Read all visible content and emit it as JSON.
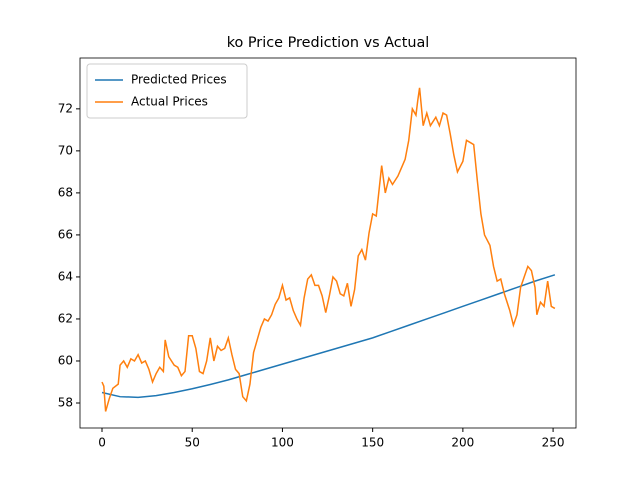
{
  "chart_data": {
    "type": "line",
    "title": "ko Price Prediction vs Actual",
    "legend": "upper left",
    "grid": false,
    "xlim": [
      -12.2,
      262.7
    ],
    "xticks": [
      0,
      50,
      100,
      150,
      200,
      250
    ],
    "ylim": [
      56.81,
      74.42
    ],
    "yticks": [
      58,
      60,
      62,
      64,
      66,
      68,
      70,
      72
    ],
    "series": [
      {
        "name": "Predicted Prices",
        "color": "#1f77b4",
        "x": [
          0,
          10,
          20,
          30,
          40,
          50,
          60,
          70,
          80,
          90,
          100,
          110,
          120,
          130,
          140,
          150,
          160,
          170,
          180,
          190,
          200,
          210,
          220,
          230,
          240,
          251
        ],
        "values": [
          58.5,
          58.3,
          58.27,
          58.35,
          58.5,
          58.68,
          58.88,
          59.1,
          59.35,
          59.6,
          59.85,
          60.1,
          60.35,
          60.6,
          60.85,
          61.1,
          61.4,
          61.7,
          62.0,
          62.3,
          62.6,
          62.9,
          63.2,
          63.5,
          63.8,
          64.1
        ]
      },
      {
        "name": "Actual Prices",
        "color": "#ff7f0e",
        "x": [
          0,
          1,
          2,
          4,
          6,
          9,
          10,
          12,
          14,
          16,
          18,
          20,
          22,
          24,
          26,
          28,
          30,
          32,
          34,
          35,
          37,
          40,
          42,
          44,
          46,
          48,
          50,
          52,
          54,
          56,
          58,
          60,
          62,
          64,
          66,
          68,
          70,
          72,
          74,
          76,
          78,
          80,
          82,
          84,
          86,
          88,
          90,
          92,
          94,
          96,
          98,
          100,
          102,
          104,
          106,
          108,
          110,
          112,
          114,
          116,
          118,
          120,
          122,
          124,
          126,
          128,
          130,
          132,
          134,
          136,
          138,
          140,
          142,
          144,
          146,
          148,
          150,
          152,
          155,
          157,
          159,
          161,
          164,
          166,
          168,
          170,
          172,
          174,
          175,
          176,
          178,
          180,
          182,
          185,
          187,
          189,
          191,
          193,
          195,
          197,
          200,
          202,
          204,
          206,
          208,
          210,
          212,
          215,
          217,
          219,
          221,
          223,
          226,
          228,
          230,
          232,
          234,
          236,
          238,
          240,
          241,
          243,
          245,
          247,
          249,
          251
        ],
        "values": [
          59.0,
          58.8,
          57.6,
          58.2,
          58.7,
          58.9,
          59.8,
          60.0,
          59.7,
          60.1,
          60.0,
          60.3,
          59.9,
          60.0,
          59.6,
          59.0,
          59.4,
          59.7,
          59.5,
          61.0,
          60.2,
          59.8,
          59.7,
          59.3,
          59.5,
          61.2,
          61.2,
          60.6,
          59.5,
          59.4,
          60.0,
          61.1,
          60.0,
          60.7,
          60.5,
          60.6,
          61.1,
          60.3,
          59.6,
          59.4,
          58.3,
          58.1,
          58.9,
          60.4,
          61.0,
          61.6,
          62.0,
          61.9,
          62.2,
          62.7,
          63.0,
          63.6,
          62.9,
          63.0,
          62.4,
          62.0,
          61.7,
          63.0,
          63.9,
          64.1,
          63.6,
          63.6,
          63.1,
          62.3,
          63.1,
          64.0,
          63.8,
          63.2,
          63.1,
          63.7,
          62.6,
          63.4,
          65.0,
          65.3,
          64.8,
          66.1,
          67.0,
          66.9,
          69.3,
          68.0,
          68.7,
          68.4,
          68.8,
          69.2,
          69.6,
          70.5,
          72.0,
          71.7,
          72.4,
          73.0,
          71.2,
          71.8,
          71.2,
          71.6,
          71.2,
          71.8,
          71.7,
          70.8,
          69.8,
          69.0,
          69.5,
          70.5,
          70.4,
          70.3,
          68.6,
          67.0,
          66.0,
          65.5,
          64.5,
          63.8,
          63.9,
          63.2,
          62.4,
          61.7,
          62.2,
          63.5,
          64.0,
          64.5,
          64.3,
          63.5,
          62.2,
          62.8,
          62.6,
          63.8,
          62.6,
          62.5
        ]
      }
    ]
  }
}
